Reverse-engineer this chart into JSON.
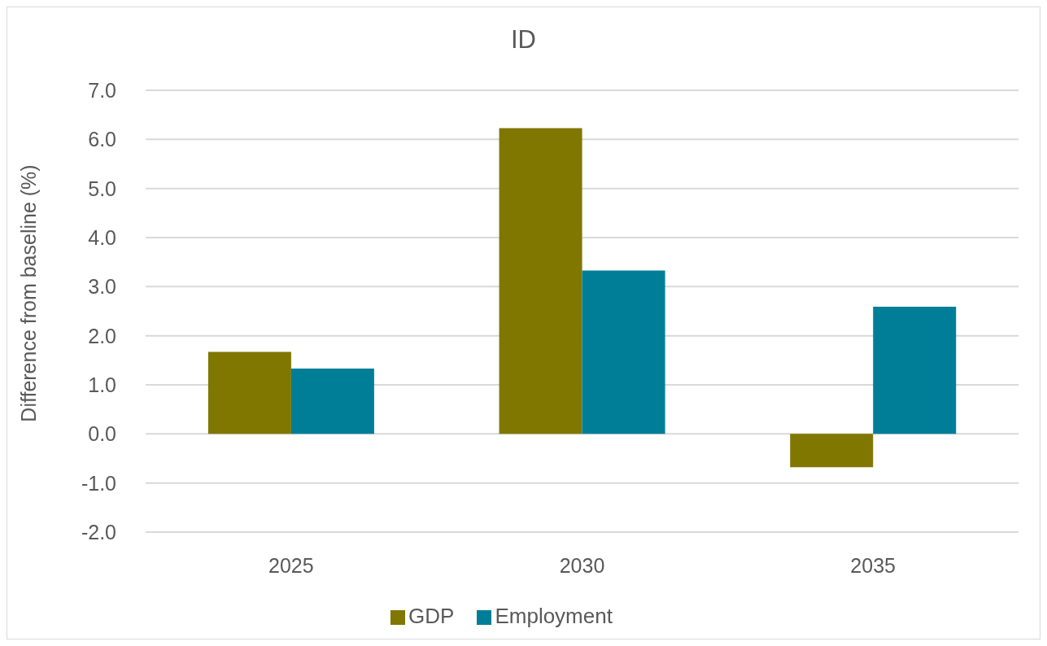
{
  "chart_data": {
    "type": "bar",
    "title": "ID",
    "ylabel": "Difference from baseline (%)",
    "categories": [
      "2025",
      "2030",
      "2035"
    ],
    "series": [
      {
        "name": "GDP",
        "color": "#7f7700",
        "values": [
          1.67,
          6.23,
          -0.68
        ]
      },
      {
        "name": "Employment",
        "color": "#007e98",
        "values": [
          1.33,
          3.33,
          2.59
        ]
      }
    ],
    "ylim": [
      -2,
      7
    ],
    "yticks": [
      {
        "value": -2,
        "label": "-2.0"
      },
      {
        "value": -1,
        "label": "-1.0"
      },
      {
        "value": 0,
        "label": "0.0"
      },
      {
        "value": 1,
        "label": "1.0"
      },
      {
        "value": 2,
        "label": "2.0"
      },
      {
        "value": 3,
        "label": "3.0"
      },
      {
        "value": 4,
        "label": "4.0"
      },
      {
        "value": 5,
        "label": "5.0"
      },
      {
        "value": 6,
        "label": "6.0"
      },
      {
        "value": 7,
        "label": "7.0"
      }
    ],
    "grid": "y",
    "legend": "bottom"
  }
}
